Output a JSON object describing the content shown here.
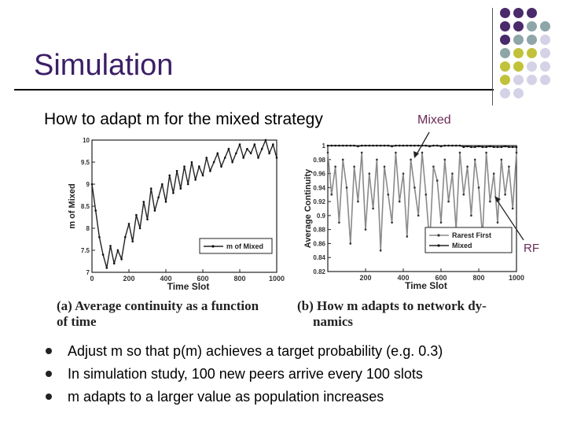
{
  "slide": {
    "title": "Simulation",
    "subtitle": "How to adapt m for the mixed strategy",
    "callouts": {
      "mixed": "Mixed",
      "rf": "RF"
    }
  },
  "bullets": [
    "Adjust m so that p(m) achieves a target probability (e.g. 0.3)",
    "In simulation study, 100 new peers arrive every 100 slots",
    "m adapts to a larger value as population increases"
  ],
  "colors": {
    "title": "#3b1f66",
    "callout": "#6b2b56",
    "dot_purple": "#4a2a6a",
    "dot_teal": "#8fa6a8",
    "dot_olive": "#c2c23a",
    "dot_lavender": "#d4d2e6"
  },
  "chart_data": [
    {
      "type": "line",
      "caption": "(a) Average continuity as a function of time",
      "xlabel": "Time Slot",
      "ylabel": "m of Mixed",
      "xlim": [
        0,
        1000
      ],
      "ylim": [
        7,
        10
      ],
      "x_ticks": [
        0,
        200,
        400,
        600,
        800,
        1000
      ],
      "y_ticks": [
        7,
        7.5,
        8,
        8.5,
        9,
        9.5,
        10
      ],
      "legend_position": "bottom-right",
      "series": [
        {
          "name": "m of Mixed",
          "x": [
            0,
            20,
            40,
            60,
            80,
            100,
            120,
            140,
            160,
            180,
            200,
            220,
            240,
            260,
            280,
            300,
            320,
            340,
            360,
            380,
            400,
            420,
            440,
            460,
            480,
            500,
            520,
            540,
            560,
            580,
            600,
            620,
            640,
            660,
            680,
            700,
            720,
            740,
            760,
            780,
            800,
            820,
            840,
            860,
            880,
            900,
            920,
            940,
            960,
            980,
            1000
          ],
          "y": [
            9.0,
            8.4,
            7.8,
            7.4,
            7.1,
            7.6,
            7.2,
            7.5,
            7.3,
            7.8,
            8.1,
            7.7,
            8.3,
            8.0,
            8.6,
            8.2,
            8.9,
            8.4,
            8.7,
            9.0,
            8.6,
            9.2,
            8.8,
            9.3,
            8.9,
            9.4,
            9.0,
            9.5,
            9.1,
            9.4,
            9.2,
            9.6,
            9.3,
            9.5,
            9.7,
            9.4,
            9.6,
            9.8,
            9.5,
            9.7,
            9.9,
            9.6,
            9.8,
            9.7,
            9.9,
            9.6,
            9.8,
            10.0,
            9.7,
            9.9,
            9.6
          ]
        }
      ]
    },
    {
      "type": "line",
      "caption": "(b) How m adapts to network dynamics",
      "xlabel": "Time Slot",
      "ylabel": "Average Continuity",
      "xlim": [
        0,
        1000
      ],
      "ylim": [
        0.82,
        1.0
      ],
      "x_ticks": [
        200,
        400,
        600,
        800,
        1000
      ],
      "y_ticks": [
        0.82,
        0.84,
        0.86,
        0.88,
        0.9,
        0.92,
        0.94,
        0.96,
        0.98,
        1
      ],
      "legend_position": "bottom-right",
      "series": [
        {
          "name": "Rarest First",
          "x": [
            0,
            20,
            40,
            60,
            80,
            100,
            120,
            140,
            160,
            180,
            200,
            220,
            240,
            260,
            280,
            300,
            320,
            340,
            360,
            380,
            400,
            420,
            440,
            460,
            480,
            500,
            520,
            540,
            560,
            580,
            600,
            620,
            640,
            660,
            680,
            700,
            720,
            740,
            760,
            780,
            800,
            820,
            840,
            860,
            880,
            900,
            920,
            940,
            960,
            980,
            1000
          ],
          "y": [
            0.99,
            0.93,
            0.97,
            0.89,
            0.98,
            0.94,
            0.86,
            0.97,
            0.92,
            0.99,
            0.88,
            0.96,
            0.91,
            0.98,
            0.85,
            0.97,
            0.93,
            0.89,
            0.99,
            0.92,
            0.96,
            0.87,
            0.98,
            0.94,
            0.9,
            0.99,
            0.93,
            0.86,
            0.97,
            0.95,
            0.89,
            0.98,
            0.92,
            0.96,
            0.88,
            0.99,
            0.93,
            0.97,
            0.9,
            0.98,
            0.94,
            0.87,
            0.99,
            0.92,
            0.96,
            0.89,
            0.98,
            0.93,
            0.97,
            0.91,
            0.99
          ]
        },
        {
          "name": "Mixed",
          "x": [
            0,
            20,
            40,
            60,
            80,
            100,
            120,
            140,
            160,
            180,
            200,
            220,
            240,
            260,
            280,
            300,
            320,
            340,
            360,
            380,
            400,
            420,
            440,
            460,
            480,
            500,
            520,
            540,
            560,
            580,
            600,
            620,
            640,
            660,
            680,
            700,
            720,
            740,
            760,
            780,
            800,
            820,
            840,
            860,
            880,
            900,
            920,
            940,
            960,
            980,
            1000
          ],
          "y": [
            1,
            1,
            1,
            1,
            1,
            1,
            1,
            1,
            0.999,
            1,
            1,
            1,
            1,
            1,
            1,
            1,
            1,
            0.999,
            1,
            1,
            1,
            1,
            1,
            1,
            1,
            1,
            1,
            0.999,
            1,
            1,
            0.999,
            1,
            1,
            1,
            1,
            1,
            0.998,
            0.999,
            0.998,
            0.998,
            0.999,
            0.998,
            0.998,
            0.999,
            0.998,
            0.998,
            0.998,
            0.999,
            0.998,
            0.998,
            0.998
          ]
        }
      ]
    }
  ]
}
